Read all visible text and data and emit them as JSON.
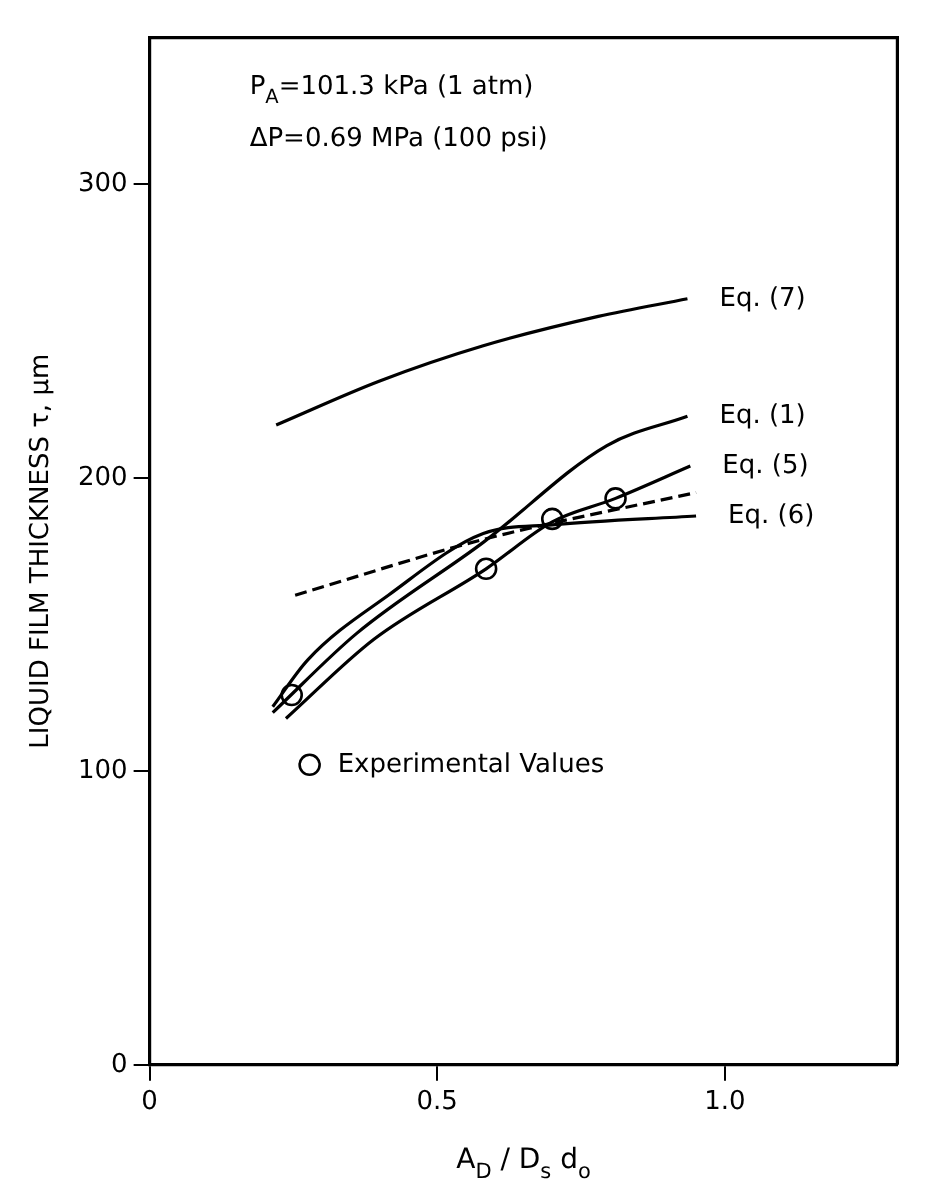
{
  "chart_data": {
    "type": "line",
    "xlabel": "A$_{D}$ / D$_{s}$ d$_{o}$",
    "ylabel": "LIQUID FILM THICKNESS τ, μm",
    "annotations": [
      "P$_{A}$=101.3 kPa (1 atm)",
      "ΔP=0.69 MPa (100 psi)"
    ],
    "xlim": [
      0,
      1.3
    ],
    "ylim": [
      0,
      350
    ],
    "xticks": [
      0,
      {
        "value": 0.5,
        "label": "0.5"
      },
      {
        "value": 1,
        "label": "1.0"
      }
    ],
    "yticks": [
      0,
      100,
      200,
      300
    ],
    "grid": false,
    "legend": "bottom left",
    "marker": "none",
    "series": [
      {
        "name": "Eq. (7)",
        "color": "#000000",
        "x": [
          0.22,
          0.4,
          0.58,
          0.78,
          0.935
        ],
        "values": [
          218,
          233,
          245,
          255,
          261
        ]
      },
      {
        "name": "Eq. (1)",
        "color": "#000000",
        "x": [
          0.214,
          0.36,
          0.58,
          0.795,
          0.935
        ],
        "values": [
          120,
          147,
          178,
          211,
          221
        ]
      },
      {
        "name": "Eq. (5)",
        "color": "#000000",
        "x": [
          0.237,
          0.39,
          0.585,
          0.7,
          0.81,
          0.94
        ],
        "values": [
          118,
          145,
          169,
          185,
          193,
          204
        ]
      },
      {
        "name": "Eq. (6)",
        "color": "#000000",
        "x": [
          0.214,
          0.275,
          0.415,
          0.58,
          0.7,
          0.95
        ],
        "values": [
          122,
          138,
          160,
          181,
          184,
          187
        ]
      },
      {
        "color": "#000000",
        "line_style": "dashed",
        "x": [
          0.253,
          0.58,
          0.95
        ],
        "values": [
          160,
          179,
          195
        ]
      },
      {
        "name": "Experimental Values",
        "type": "scatter",
        "marker": "circle",
        "color": "#000000",
        "x": [
          0.247,
          0.585,
          0.7,
          0.81
        ],
        "values": [
          126,
          169,
          186,
          193
        ]
      }
    ]
  }
}
